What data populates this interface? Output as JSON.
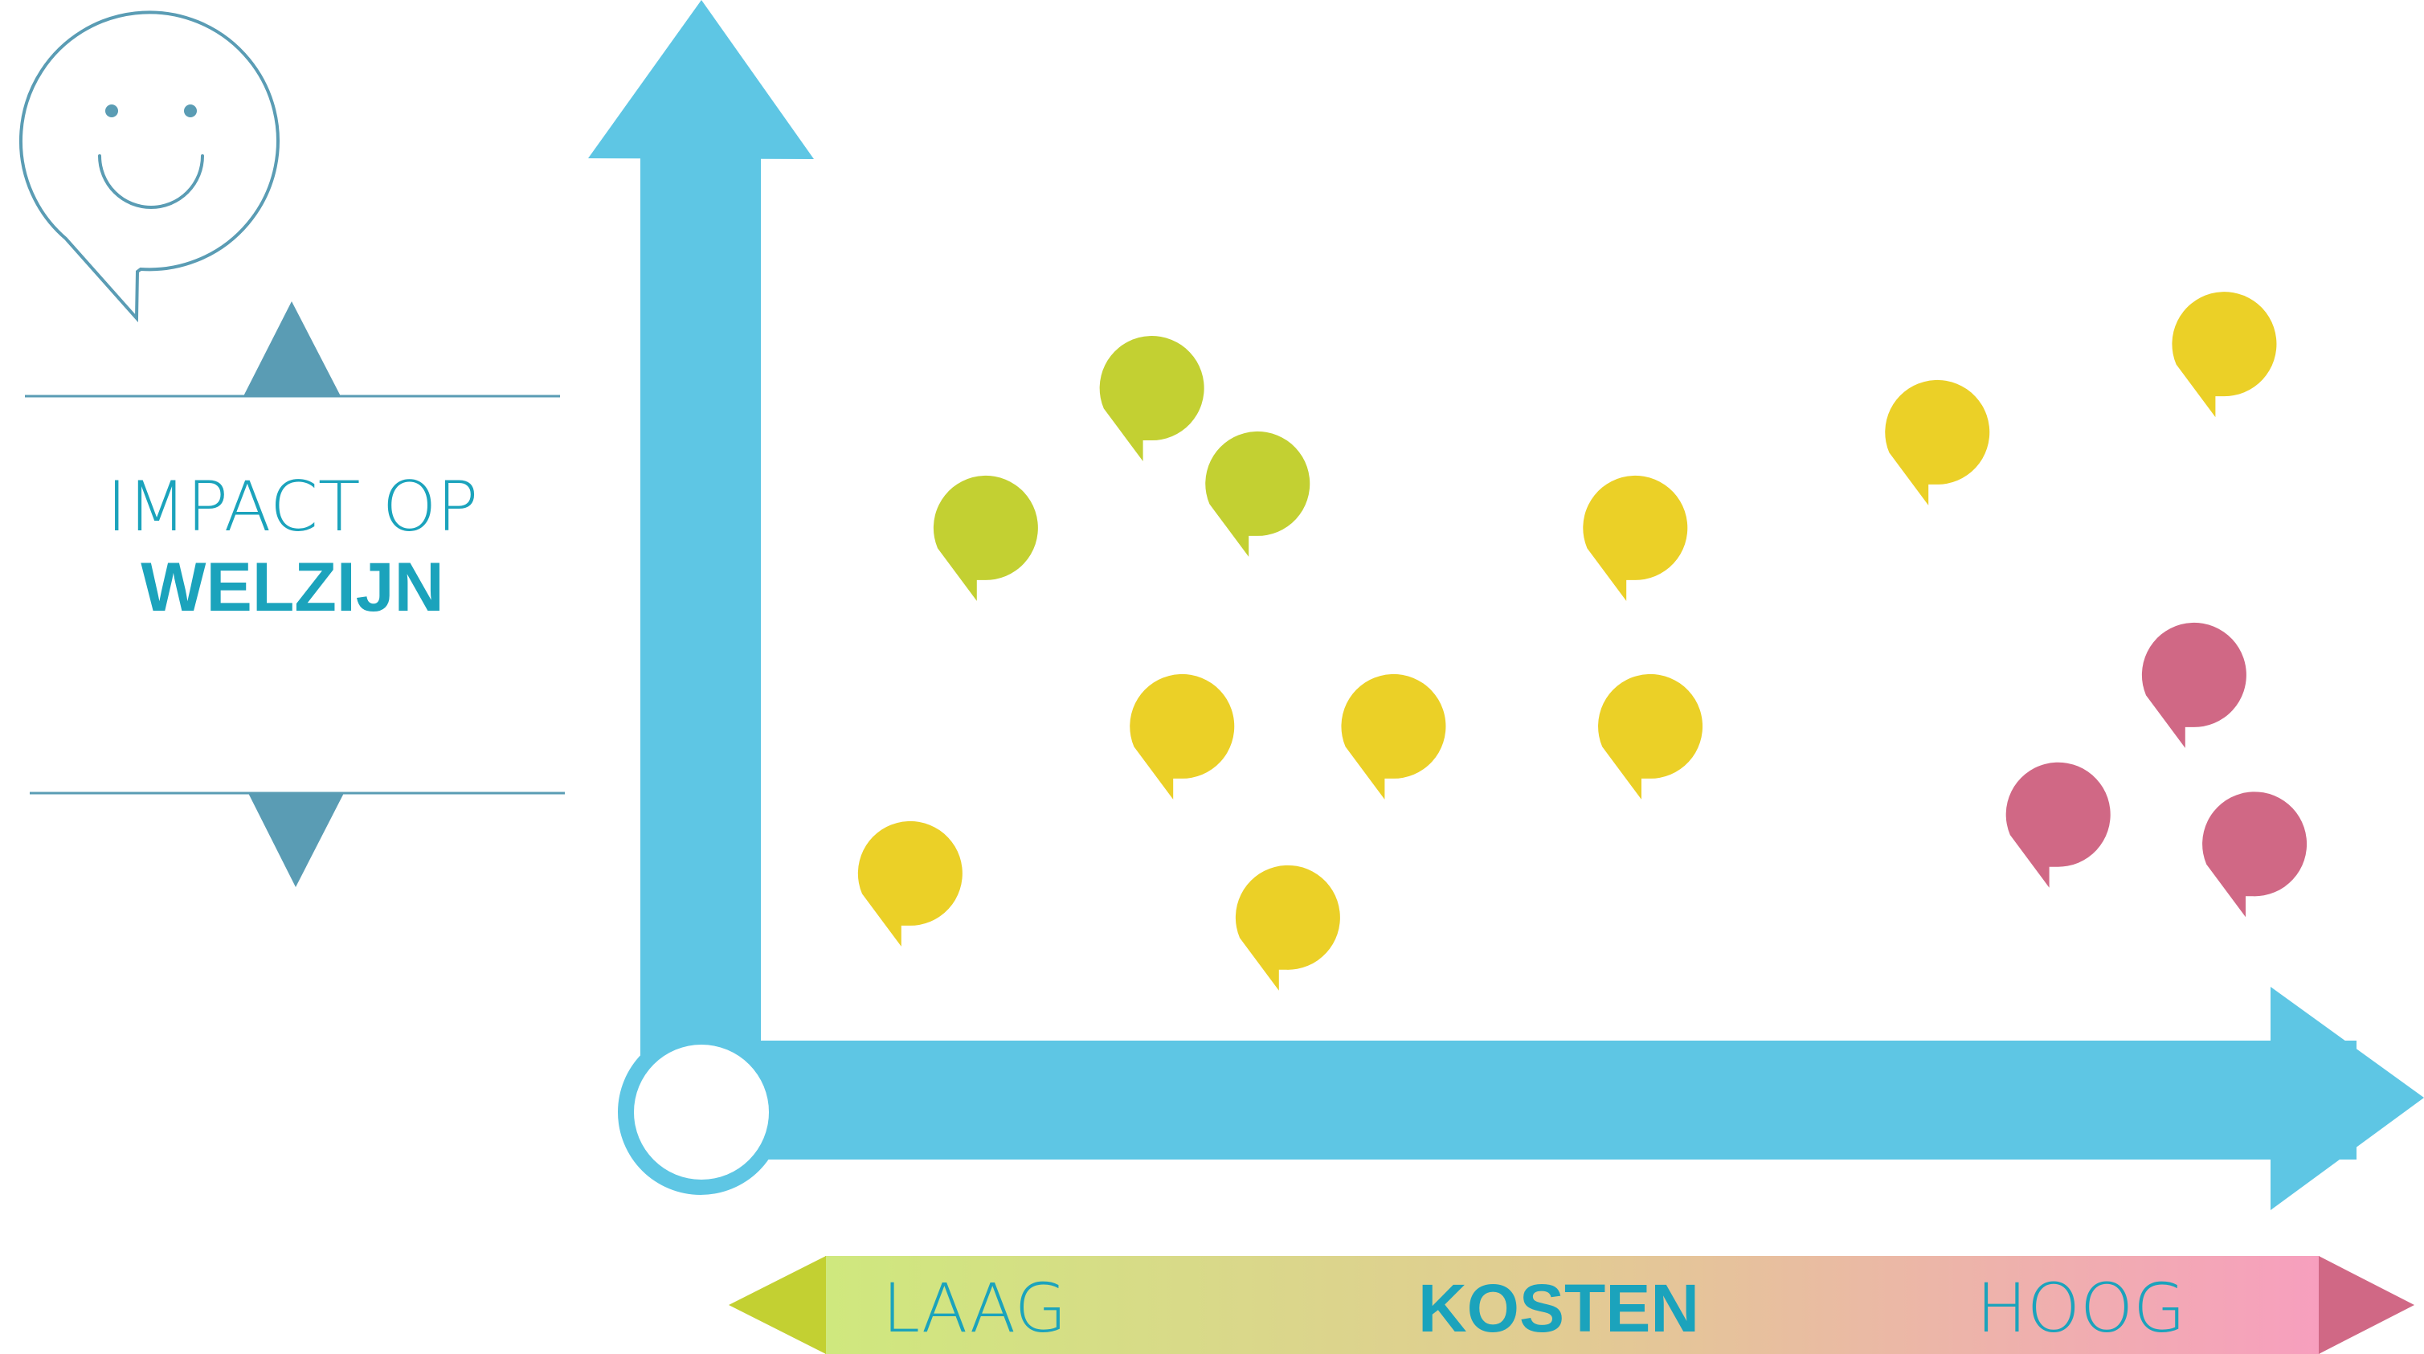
{
  "colors": {
    "axis": "#5EC6E4",
    "outline": "#5A9CB4",
    "marker": "#5A9CB4",
    "text_accent": "#1BA3BC",
    "green": "#C3D032",
    "yellow": "#EBD027",
    "pink": "#D06885",
    "gradient": [
      "#CFE87E",
      "#E2CB93",
      "#F79FBE"
    ]
  },
  "icon": "smiley-speech-bubble-icon",
  "y_axis": {
    "label_light": "IMPACT OP",
    "label_bold": "WELZIJN"
  },
  "x_axis": {
    "label_low": "LAAG",
    "label_bold": "KOSTEN",
    "label_high": "HOOG"
  },
  "bubbles": [
    {
      "color": "green",
      "cost": 0.22,
      "impact": 0.8
    },
    {
      "color": "green",
      "cost": 0.11,
      "impact": 0.61
    },
    {
      "color": "green",
      "cost": 0.29,
      "impact": 0.67
    },
    {
      "color": "yellow",
      "cost": 0.06,
      "impact": 0.14
    },
    {
      "color": "yellow",
      "cost": 0.24,
      "impact": 0.34
    },
    {
      "color": "yellow",
      "cost": 0.31,
      "impact": 0.08
    },
    {
      "color": "yellow",
      "cost": 0.38,
      "impact": 0.34
    },
    {
      "color": "yellow",
      "cost": 0.54,
      "impact": 0.61
    },
    {
      "color": "yellow",
      "cost": 0.55,
      "impact": 0.34
    },
    {
      "color": "yellow",
      "cost": 0.74,
      "impact": 0.74
    },
    {
      "color": "yellow",
      "cost": 0.93,
      "impact": 0.86
    },
    {
      "color": "pink",
      "cost": 0.91,
      "impact": 0.41
    },
    {
      "color": "pink",
      "cost": 0.82,
      "impact": 0.22
    },
    {
      "color": "pink",
      "cost": 0.95,
      "impact": 0.18
    }
  ]
}
